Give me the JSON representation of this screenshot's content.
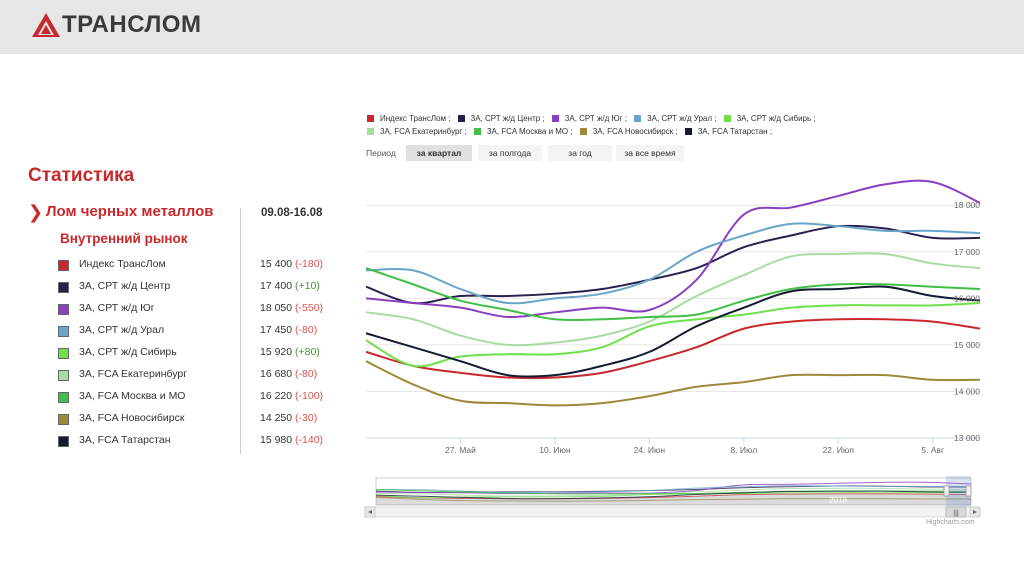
{
  "brand": {
    "name": "ТРАНСЛОМ",
    "color": "#c8282b"
  },
  "sidebar": {
    "title": "Статистика",
    "category": {
      "label": "Лом черных металлов",
      "date_range": "09.08-16.08"
    },
    "subtitle": "Внутренний рынок",
    "rows": [
      {
        "label": "Индекс ТрансЛом",
        "value": "15 400",
        "change": "(-180)",
        "trend": "neg",
        "color": "#c8282b"
      },
      {
        "label": "3А, СРТ ж/д Центр",
        "value": "17 400",
        "change": "(+10)",
        "trend": "pos",
        "color": "#2a1f4f"
      },
      {
        "label": "3А, СРТ ж/д Юг",
        "value": "18 050",
        "change": "(-550)",
        "trend": "neg",
        "color": "#8a3fc1"
      },
      {
        "label": "3А, СРТ ж/д Урал",
        "value": "17 450",
        "change": "(-80)",
        "trend": "neg",
        "color": "#6ba4c9"
      },
      {
        "label": "3А, СРТ ж/д Сибирь",
        "value": "15 920",
        "change": "(+80)",
        "trend": "pos",
        "color": "#6ee04a"
      },
      {
        "label": "3А, FCA Екатеринбург",
        "value": "16 680",
        "change": "(-80)",
        "trend": "neg",
        "color": "#a6dca0"
      },
      {
        "label": "3А, FCA Москва и МО",
        "value": "16 220",
        "change": "(-100)",
        "trend": "neg",
        "color": "#3fbf45"
      },
      {
        "label": "3А, FCA Новосибирск",
        "value": "14 250",
        "change": "(-30)",
        "trend": "neg",
        "color": "#9c8a3a"
      },
      {
        "label": "3А, FCA Татарстан",
        "value": "15 980",
        "change": "(-140)",
        "trend": "neg",
        "color": "#141a33"
      }
    ]
  },
  "period": {
    "label": "Период",
    "options": [
      "за квартал",
      "за полгода",
      "за год",
      "за все время"
    ],
    "active": "за квартал"
  },
  "navigator": {
    "year_label": "2018",
    "scroll_grip": "|||"
  },
  "credit": "Highcharts.com",
  "chart_data": {
    "type": "line",
    "title": "",
    "xlabel": "",
    "ylabel": "",
    "ylim": [
      13000,
      18800
    ],
    "yticks": [
      13000,
      14000,
      15000,
      16000,
      17000,
      18000
    ],
    "ytick_labels": [
      "13 000",
      "14 000",
      "15 000",
      "16 000",
      "17 000",
      "18 000"
    ],
    "xtick_positions": [
      2,
      4,
      6,
      8,
      10,
      12
    ],
    "xtick_labels": [
      "27. Май",
      "10. Июн",
      "24. Июн",
      "8. Июл",
      "22. Июл",
      "5. Авг"
    ],
    "x": [
      0,
      1,
      2,
      3,
      4,
      5,
      6,
      7,
      8,
      9,
      10,
      11,
      12,
      13
    ],
    "legend_position": "top",
    "series": [
      {
        "name": "Индекс ТрансЛом",
        "color": "#c8282b",
        "values": [
          14850,
          14550,
          14400,
          14300,
          14300,
          14400,
          14650,
          14950,
          15350,
          15500,
          15550,
          15550,
          15500,
          15350
        ]
      },
      {
        "name": "3А, СРТ ж/д Центр",
        "color": "#2a1f4f",
        "values": [
          16250,
          15900,
          16050,
          16050,
          16100,
          16200,
          16400,
          16650,
          17100,
          17350,
          17550,
          17500,
          17300,
          17300
        ]
      },
      {
        "name": "3А, СРТ ж/д Юг",
        "color": "#8a3fc1",
        "values": [
          16000,
          15900,
          15800,
          15600,
          15700,
          15800,
          15750,
          16400,
          17800,
          17950,
          18200,
          18450,
          18500,
          18050
        ]
      },
      {
        "name": "3А, СРТ ж/д Урал",
        "color": "#6ba4c9",
        "values": [
          16600,
          16600,
          16200,
          15900,
          16000,
          16100,
          16400,
          17000,
          17350,
          17600,
          17550,
          17450,
          17450,
          17400
        ]
      },
      {
        "name": "3А, СРТ ж/д Сибирь",
        "color": "#6ee04a",
        "values": [
          15100,
          14550,
          14750,
          14800,
          14800,
          14950,
          15400,
          15550,
          15650,
          15800,
          15850,
          15850,
          15850,
          15900
        ]
      },
      {
        "name": "3А, FCA Екатеринбург",
        "color": "#a6dca0",
        "values": [
          15700,
          15550,
          15200,
          15000,
          15050,
          15200,
          15500,
          16050,
          16500,
          16900,
          16950,
          16950,
          16750,
          16650
        ]
      },
      {
        "name": "3А, FCA Москва и МО",
        "color": "#3fbf45",
        "values": [
          16650,
          16300,
          15950,
          15750,
          15550,
          15550,
          15600,
          15650,
          15950,
          16200,
          16300,
          16300,
          16250,
          16200
        ]
      },
      {
        "name": "3А, FCA Новосибирск",
        "color": "#9c8a3a",
        "values": [
          14650,
          14150,
          13800,
          13750,
          13700,
          13750,
          13900,
          14100,
          14200,
          14350,
          14350,
          14350,
          14250,
          14250
        ]
      },
      {
        "name": "3А, FCA Татарстан",
        "color": "#141a33",
        "values": [
          15250,
          14950,
          14650,
          14350,
          14350,
          14550,
          14850,
          15400,
          15800,
          16150,
          16200,
          16250,
          16050,
          15950
        ]
      }
    ]
  }
}
